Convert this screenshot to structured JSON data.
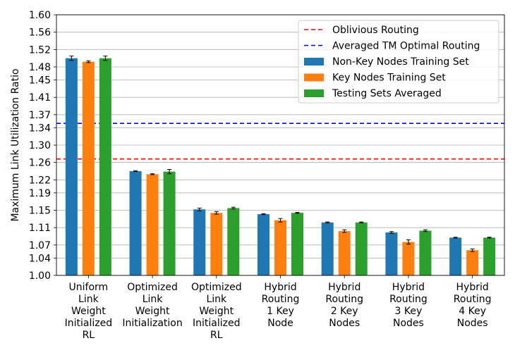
{
  "chart_data": {
    "type": "bar",
    "title": "",
    "xlabel": "",
    "ylabel": "Maximum Link Utilization Ratio",
    "ylim": [
      1.0,
      1.6
    ],
    "grid": "horizontal",
    "legend_position": "top-right",
    "y_ticks": [
      "1.00",
      "1.04",
      "1.07",
      "1.11",
      "1.15",
      "1.19",
      "1.22",
      "1.26",
      "1.30",
      "1.34",
      "1.37",
      "1.41",
      "1.45",
      "1.48",
      "1.52",
      "1.56",
      "1.60"
    ],
    "categories": [
      [
        "Uniform",
        "Link",
        "Weight",
        "Initialized",
        "RL"
      ],
      [
        "Optimized",
        "Link",
        "Weight",
        "Initialization"
      ],
      [
        "Optimized",
        "Link",
        "Weight",
        "Initialized",
        "RL"
      ],
      [
        "Hybrid",
        "Routing",
        "1 Key",
        "Node"
      ],
      [
        "Hybrid",
        "Routing",
        "2 Key",
        "Nodes"
      ],
      [
        "Hybrid",
        "Routing",
        "3 Key",
        "Nodes"
      ],
      [
        "Hybrid",
        "Routing",
        "4 Key",
        "Nodes"
      ]
    ],
    "series": [
      {
        "name": "Non-Key Nodes Training Set",
        "color": "#1f77b4",
        "values": [
          1.5,
          1.24,
          1.152,
          1.141,
          1.122,
          1.099,
          1.087
        ],
        "errors": [
          0.005,
          0.001,
          0.003,
          0.001,
          0.001,
          0.002,
          0.001
        ]
      },
      {
        "name": "Key Nodes Training Set",
        "color": "#ff7f0e",
        "values": [
          1.492,
          1.233,
          1.144,
          1.127,
          1.102,
          1.077,
          1.058
        ],
        "errors": [
          0.002,
          0.001,
          0.003,
          0.004,
          0.003,
          0.005,
          0.003
        ]
      },
      {
        "name": "Testing Sets Averaged",
        "color": "#2ca02c",
        "values": [
          1.5,
          1.239,
          1.155,
          1.144,
          1.122,
          1.103,
          1.087
        ],
        "errors": [
          0.005,
          0.005,
          0.002,
          0.001,
          0.001,
          0.002,
          0.001
        ]
      }
    ],
    "reference_lines": [
      {
        "name": "Oblivious Routing",
        "value": 1.268,
        "color": "#ff0000",
        "style": "dashed"
      },
      {
        "name": "Averaged TM Optimal Routing",
        "value": 1.35,
        "color": "#0000ff",
        "style": "dashed"
      }
    ],
    "legend_order": [
      "Oblivious Routing",
      "Averaged TM Optimal Routing",
      "Non-Key Nodes Training Set",
      "Key Nodes Training Set",
      "Testing Sets Averaged"
    ]
  }
}
